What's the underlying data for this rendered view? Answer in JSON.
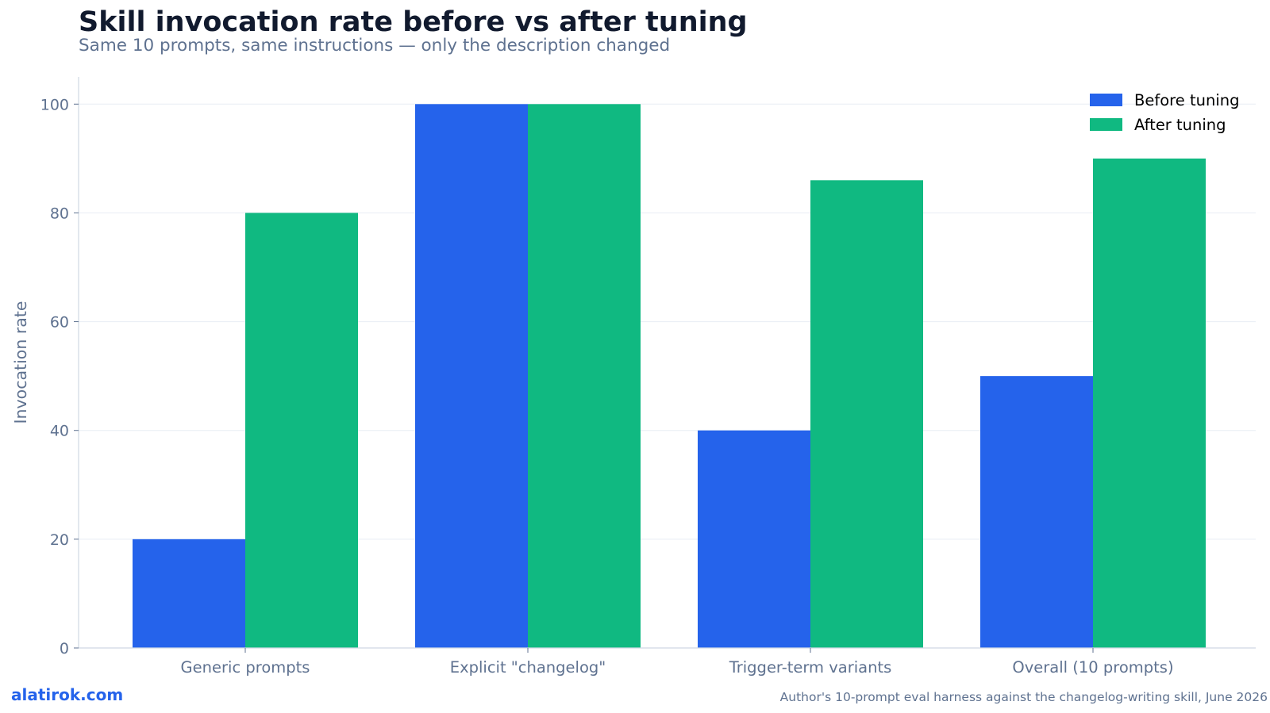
{
  "header": {
    "title": "Skill invocation rate before vs after tuning",
    "subtitle": "Same 10 prompts, same instructions — only the description changed"
  },
  "footer": {
    "brand": "alatirok.com",
    "source": "Author's 10-prompt eval harness against the changelog-writing skill, June 2026"
  },
  "chart_data": {
    "type": "bar",
    "categories": [
      "Generic prompts",
      "Explicit \"changelog\"",
      "Trigger-term variants",
      "Overall (10 prompts)"
    ],
    "series": [
      {
        "name": "Before tuning",
        "color": "#2563eb",
        "values": [
          20,
          100,
          40,
          50
        ]
      },
      {
        "name": "After tuning",
        "color": "#10b981",
        "values": [
          80,
          100,
          86,
          90
        ]
      }
    ],
    "xlabel": "",
    "ylabel": "Invocation rate",
    "ylim": [
      0,
      105
    ],
    "yticks": [
      0,
      20,
      40,
      60,
      80,
      100
    ],
    "grid": true,
    "legend_position": "top-right"
  }
}
